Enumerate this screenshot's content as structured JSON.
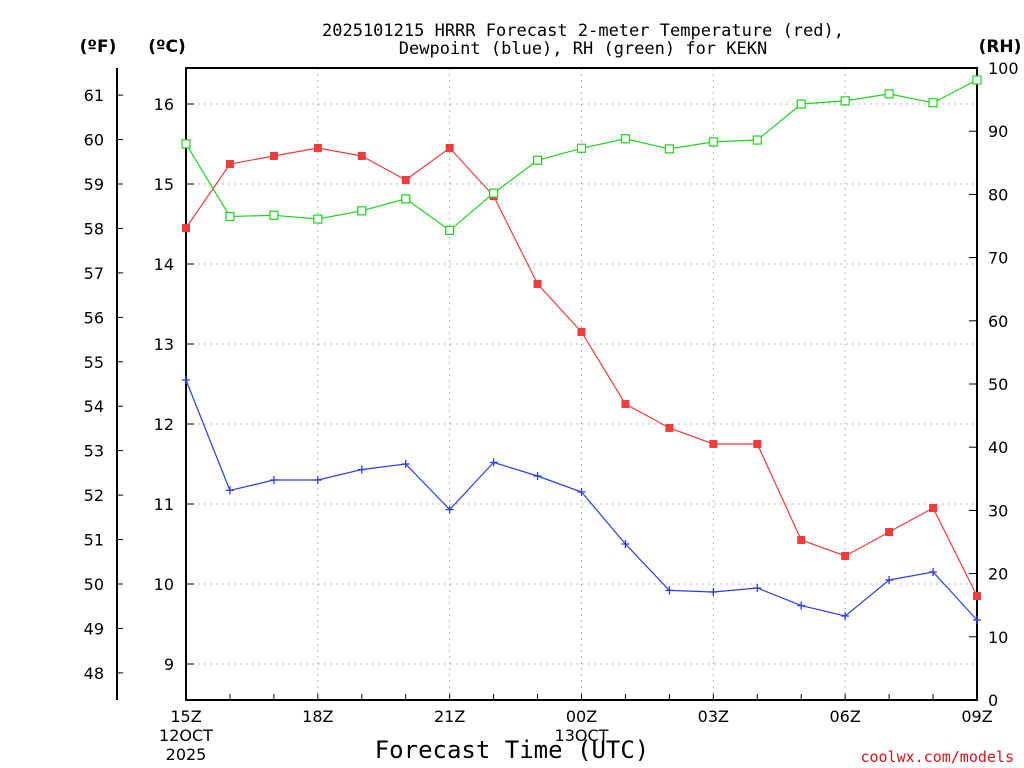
{
  "chart_data": {
    "type": "line",
    "title": "2025101215 HRRR Forecast 2-meter Temperature (red),",
    "subtitle": "Dewpoint (blue), RH (green) for KEKN",
    "xlabel": "Forecast Time (UTC)",
    "credit": "coolwx.com/models",
    "units": {
      "fahrenheit": "(ºF)",
      "celsius": "(ºC)",
      "rh": "(RH)"
    },
    "x_hours": [
      0,
      1,
      2,
      3,
      4,
      5,
      6,
      7,
      8,
      9,
      10,
      11,
      12,
      13,
      14,
      15,
      16,
      17,
      18
    ],
    "xlim": [
      0,
      18
    ],
    "x_ticks": [
      {
        "hour": 0,
        "label": "15Z",
        "date_line1": "12OCT",
        "date_line2": "2025"
      },
      {
        "hour": 3,
        "label": "18Z"
      },
      {
        "hour": 6,
        "label": "21Z"
      },
      {
        "hour": 9,
        "label": "00Z",
        "date_line1": "13OCT"
      },
      {
        "hour": 12,
        "label": "03Z"
      },
      {
        "hour": 15,
        "label": "06Z"
      },
      {
        "hour": 18,
        "label": "09Z"
      }
    ],
    "celsius_axis": {
      "ylim": [
        8.55,
        16.45
      ],
      "ticks": [
        9,
        10,
        11,
        12,
        13,
        14,
        15,
        16
      ]
    },
    "fahrenheit_axis": {
      "ylim": [
        47.39,
        61.61
      ],
      "ticks": [
        48,
        49,
        50,
        51,
        52,
        53,
        54,
        55,
        56,
        57,
        58,
        59,
        60,
        61
      ]
    },
    "rh_axis": {
      "ylim": [
        0,
        100
      ],
      "ticks": [
        0,
        10,
        20,
        30,
        40,
        50,
        60,
        70,
        80,
        90,
        100
      ]
    },
    "series": [
      {
        "name": "Temperature",
        "axis": "celsius",
        "color": "#f03c3c",
        "marker": "filled-square",
        "values": [
          14.45,
          15.25,
          15.35,
          15.45,
          15.35,
          15.05,
          15.45,
          14.85,
          13.75,
          13.15,
          12.25,
          11.95,
          11.75,
          11.75,
          10.55,
          10.35,
          10.65,
          10.95,
          9.85
        ]
      },
      {
        "name": "Dewpoint",
        "axis": "celsius",
        "color": "#2a3cf0",
        "marker": "plus",
        "values": [
          12.55,
          11.17,
          11.3,
          11.3,
          11.43,
          11.5,
          10.93,
          11.52,
          11.35,
          11.15,
          10.5,
          9.92,
          9.9,
          9.95,
          9.73,
          9.6,
          10.05,
          10.15,
          9.55
        ]
      },
      {
        "name": "RH",
        "axis": "rh",
        "color": "#1ed21e",
        "marker": "open-square",
        "values": [
          88,
          76.5,
          76.7,
          76.1,
          77.4,
          79.3,
          74.3,
          80.2,
          85.4,
          87.3,
          88.8,
          87.2,
          88.3,
          88.6,
          94.3,
          94.8,
          95.9,
          94.5,
          98.1
        ]
      }
    ]
  }
}
